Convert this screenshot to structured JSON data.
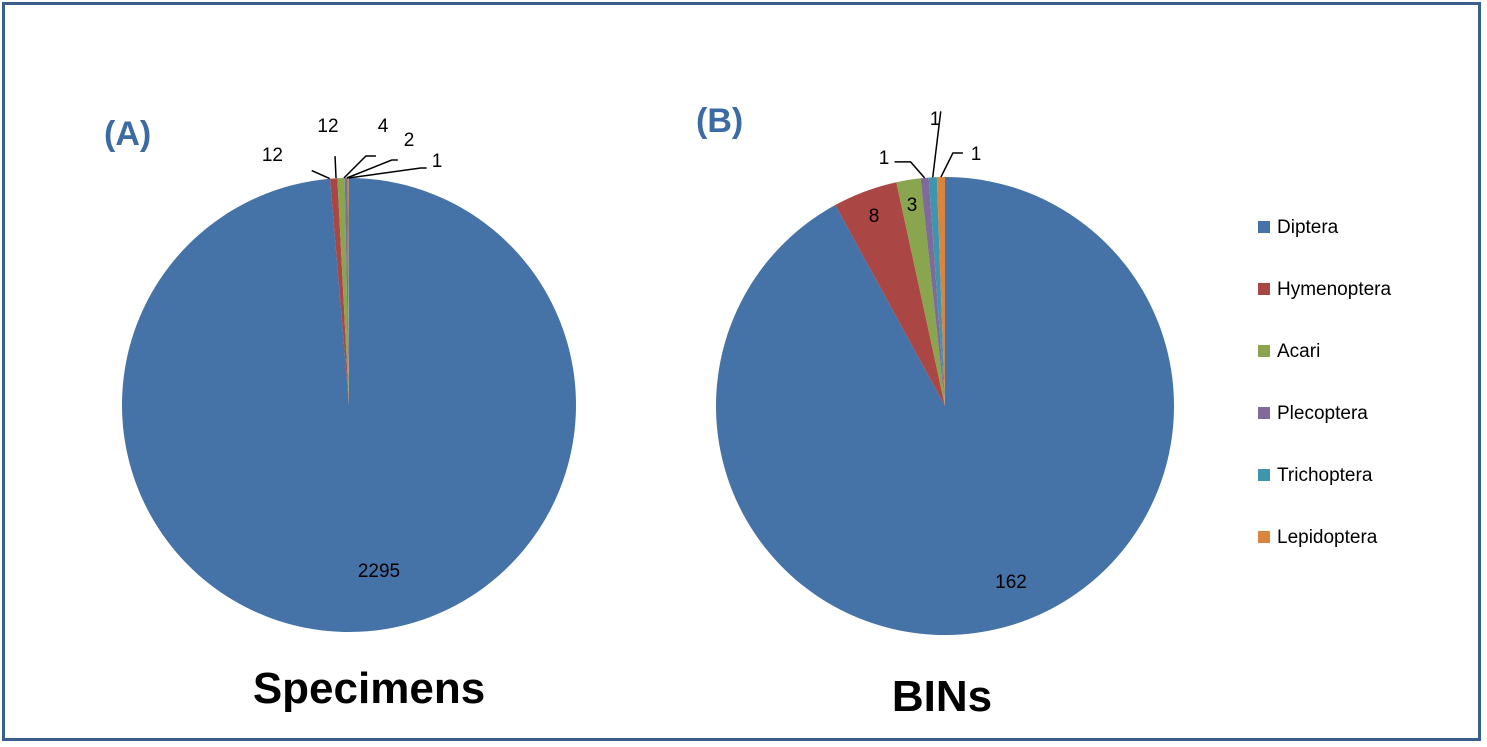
{
  "chart_data": [
    {
      "type": "pie",
      "panel": "(A)",
      "title": "Specimens",
      "categories": [
        "Diptera",
        "Hymenoptera",
        "Acari",
        "Plecoptera",
        "Trichoptera",
        "Lepidoptera"
      ],
      "values": [
        2295,
        12,
        12,
        4,
        2,
        1
      ],
      "data_labels": [
        "2295",
        "12",
        "12",
        "4",
        "2",
        "1"
      ]
    },
    {
      "type": "pie",
      "panel": "(B)",
      "title": "BINs",
      "categories": [
        "Diptera",
        "Hymenoptera",
        "Acari",
        "Plecoptera",
        "Trichoptera",
        "Lepidoptera"
      ],
      "values": [
        162,
        8,
        3,
        1,
        1,
        1
      ],
      "data_labels": [
        "162",
        "8",
        "3",
        "1",
        "1",
        "1"
      ]
    }
  ],
  "legend": {
    "placement": "right",
    "items": [
      {
        "label": "Diptera",
        "color": "#4572A7"
      },
      {
        "label": "Hymenoptera",
        "color": "#AA4643"
      },
      {
        "label": "Acari",
        "color": "#89A54E"
      },
      {
        "label": "Plecoptera",
        "color": "#80699B"
      },
      {
        "label": "Trichoptera",
        "color": "#3D96AE"
      },
      {
        "label": "Lepidoptera",
        "color": "#DB843D"
      }
    ]
  }
}
